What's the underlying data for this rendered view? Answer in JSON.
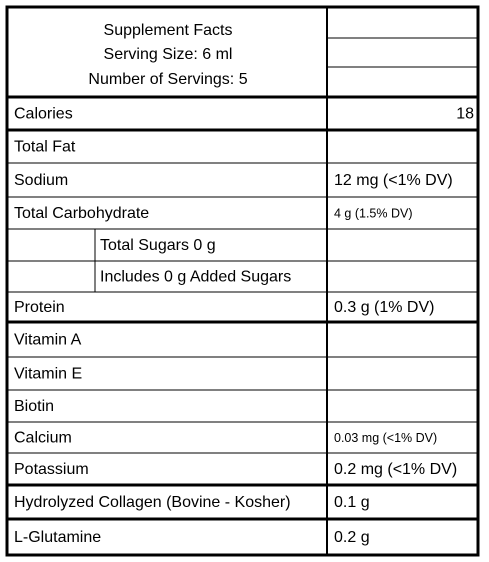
{
  "header": {
    "title": "Supplement Facts",
    "serving_size": "Serving Size: 6 ml",
    "servings": "Number of Servings: 5"
  },
  "rows": [
    {
      "label": "Calories",
      "value": "18"
    },
    {
      "label": "Total Fat"
    },
    {
      "label": "Sodium",
      "value": "12 mg (<1% DV)"
    },
    {
      "label": "Total Carbohydrate",
      "value": "4 g (1.5% DV)"
    },
    {
      "label": "Total Sugars 0 g"
    },
    {
      "label": "Includes 0 g Added Sugars"
    },
    {
      "label": "Protein",
      "value": "0.3 g (1% DV)"
    },
    {
      "label": "Vitamin A"
    },
    {
      "label": "Vitamin E"
    },
    {
      "label": "Biotin"
    },
    {
      "label": "Calcium",
      "value": "0.03 mg (<1% DV)"
    },
    {
      "label": "Potassium",
      "value": "0.2 mg (<1% DV)"
    },
    {
      "label": "Hydrolyzed Collagen (Bovine - Kosher)",
      "value": "0.1 g"
    },
    {
      "label": "L-Glutamine",
      "value": "0.2 g"
    }
  ]
}
